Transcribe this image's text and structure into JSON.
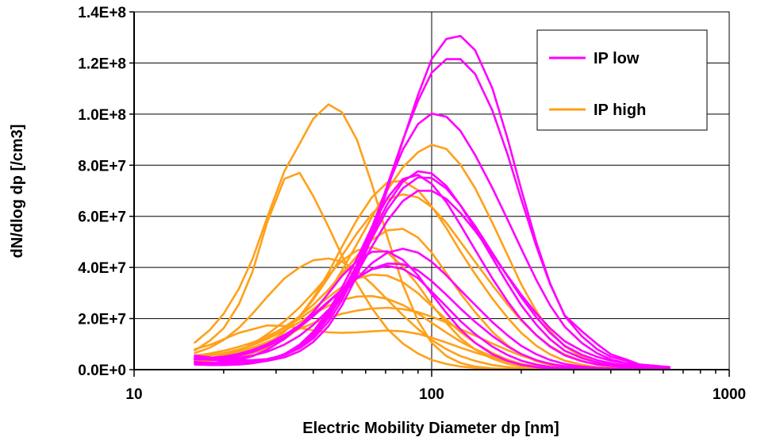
{
  "chart_data": {
    "type": "line",
    "title": "",
    "xlabel": "Electric Mobility Diameter dp [nm]",
    "ylabel": "dN/dlog dp [/cm3]",
    "xscale": "log",
    "xlim": [
      10,
      1000
    ],
    "ylim": [
      0,
      140000000
    ],
    "x_tick_labels": [
      "10",
      "100",
      "1000"
    ],
    "y_tick_labels": [
      "0.0E+0",
      "2.0E+7",
      "4.0E+7",
      "6.0E+7",
      "8.0E+7",
      "1.0E+8",
      "1.2E+8",
      "1.4E+8"
    ],
    "grid": true,
    "legend": {
      "position": "top-right",
      "entries": [
        {
          "label": "IP low",
          "color": "#ff00ff"
        },
        {
          "label": "IP high",
          "color": "#ffa01a"
        }
      ]
    },
    "x": [
      16,
      18,
      20,
      22.5,
      25,
      28,
      32,
      36,
      40,
      45,
      50,
      56,
      63,
      71,
      80,
      90,
      100,
      112,
      125,
      140,
      160,
      180,
      200,
      225,
      250,
      280,
      320,
      360,
      400,
      450,
      500,
      560,
      630
    ],
    "series": [
      {
        "group": "IP low",
        "values": [
          5000000,
          4100000,
          3450000,
          3050000,
          3030000,
          3400000,
          4810000,
          7200000,
          10800000,
          17000000,
          25200000,
          36600000,
          52300000,
          70500000,
          89600000,
          107500000,
          121500000,
          129400000,
          130600000,
          125000000,
          110100000,
          90400000,
          70500000,
          49600000,
          33800000,
          21000000,
          13000000,
          8000000,
          5000000,
          3500000,
          2000000,
          1500000,
          1000000
        ]
      },
      {
        "group": "IP low",
        "values": [
          5500000,
          4800000,
          4100000,
          3700000,
          3700000,
          4140000,
          5720000,
          8340000,
          12200000,
          18800000,
          27300000,
          38900000,
          54500000,
          72200000,
          89900000,
          105200000,
          116200000,
          121500000,
          121500000,
          115700000,
          101400000,
          84200000,
          66700000,
          48100000,
          33500000,
          21200000,
          15000000,
          10000000,
          6000000,
          4000000,
          2000000,
          1500000,
          1000000
        ]
      },
      {
        "group": "IP low",
        "values": [
          4500000,
          3900000,
          3350000,
          3150000,
          3300000,
          3980000,
          5860000,
          8840000,
          13100000,
          20300000,
          29200000,
          40900000,
          55800000,
          71700000,
          86100000,
          96100000,
          100200000,
          99000000,
          93400000,
          84000000,
          71100000,
          58700000,
          47300000,
          35000000,
          25200000,
          16800000,
          10400000,
          6400000,
          4000000,
          2500000,
          1800000,
          1300000,
          1000000
        ]
      },
      {
        "group": "IP low",
        "values": [
          3000000,
          2700000,
          2500000,
          2400000,
          2800000,
          3680000,
          6030000,
          9760000,
          14900000,
          23000000,
          32200000,
          43300000,
          55900000,
          67200000,
          74600000,
          76200000,
          72700000,
          65600000,
          56600000,
          46900000,
          35700000,
          26700000,
          19600000,
          13400000,
          9000000,
          5600000,
          3300000,
          2000000,
          1500000,
          1000000,
          800000,
          600000,
          500000
        ]
      },
      {
        "group": "IP low",
        "values": [
          2800000,
          2500000,
          2300000,
          2300000,
          2700000,
          3700000,
          6040000,
          9520000,
          14100000,
          21000000,
          28600000,
          37700000,
          48200000,
          58300000,
          66000000,
          70000000,
          70000000,
          66800000,
          61300000,
          54300000,
          45100000,
          36700000,
          29300000,
          21900000,
          16200000,
          11100000,
          7400000,
          5000000,
          3500000,
          2500000,
          1800000,
          1300000,
          1000000
        ]
      },
      {
        "group": "IP low",
        "values": [
          2500000,
          2200000,
          2000000,
          2100000,
          2500000,
          3490000,
          5870000,
          9480000,
          14400000,
          21900000,
          30400000,
          40800000,
          53000000,
          64800000,
          73600000,
          77600000,
          76800000,
          71900000,
          64300000,
          55100000,
          43700000,
          33700000,
          25200000,
          17500000,
          11900000,
          7400000,
          4500000,
          2800000,
          1800000,
          1200000,
          800000,
          600000,
          500000
        ]
      },
      {
        "group": "IP low",
        "values": [
          2000000,
          1800000,
          1800000,
          2000000,
          2500000,
          3520000,
          5930000,
          9540000,
          14400000,
          21800000,
          30000000,
          39900000,
          51500000,
          62700000,
          71000000,
          75200000,
          75000000,
          70900000,
          64300000,
          56200000,
          45700000,
          36400000,
          28300000,
          20400000,
          14400000,
          9300000,
          5800000,
          3700000,
          2500000,
          1700000,
          1200000,
          900000,
          700000
        ]
      },
      {
        "group": "IP low",
        "values": [
          4500000,
          4600000,
          5100000,
          6180000,
          7690000,
          10000000,
          13500000,
          17400000,
          21500000,
          26700000,
          31400000,
          35800000,
          39500000,
          41500000,
          41300000,
          38800000,
          34600000,
          29300000,
          23900000,
          18700000,
          13200000,
          9100000,
          6100000,
          3700000,
          2300000,
          1300000,
          700000,
          400000,
          300000,
          200000,
          100000,
          100000,
          100000
        ]
      },
      {
        "group": "IP low",
        "values": [
          4000000,
          4000000,
          4500000,
          5470000,
          6900000,
          9130000,
          12600000,
          16600000,
          20900000,
          26400000,
          31400000,
          35800000,
          39300000,
          40600000,
          39400000,
          35800000,
          30500000,
          24700000,
          19000000,
          13900000,
          9000000,
          5700000,
          3500000,
          2000000,
          1100000,
          600000,
          300000,
          200000,
          100000,
          100000,
          100000,
          100000,
          100000
        ]
      },
      {
        "group": "IP low",
        "values": [
          2500000,
          2500000,
          2900000,
          3810000,
          5290000,
          7790000,
          12000000,
          17000000,
          22600000,
          29900000,
          36700000,
          42400000,
          46100000,
          46300000,
          43000000,
          36900000,
          29600000,
          22200000,
          15700000,
          10500000,
          6000000,
          3400000,
          1900000,
          1000000,
          500000,
          300000,
          200000,
          100000,
          100000,
          100000,
          100000,
          100000,
          100000
        ]
      },
      {
        "group": "IP low",
        "values": [
          4000000,
          3900000,
          4100000,
          4610000,
          5500000,
          7000000,
          9800000,
          13300000,
          17500000,
          23400000,
          29400000,
          35700000,
          41700000,
          45800000,
          47300000,
          45800000,
          42200000,
          36900000,
          31100000,
          25300000,
          18600000,
          13400000,
          9300000,
          6000000,
          3800000,
          2200000,
          1200000,
          700000,
          500000,
          300000,
          200000,
          100000,
          100000
        ]
      },
      {
        "group": "IP high",
        "values": [
          10600000,
          15600000,
          21900000,
          31700000,
          43300000,
          59500000,
          77700000,
          88400000,
          98200000,
          103800000,
          100700000,
          90100000,
          72500000,
          51900000,
          33200000,
          19100000,
          10500000,
          5300000,
          2600000,
          1200000,
          500000,
          200000,
          100000,
          100000,
          100000,
          100000,
          100000,
          100000,
          100000,
          100000,
          100000,
          100000,
          100000
        ]
      },
      {
        "group": "IP high",
        "values": [
          7500000,
          11400000,
          16200000,
          25600000,
          38300000,
          57600000,
          74700000,
          77000000,
          67900000,
          55900000,
          44500000,
          33800000,
          24000000,
          15900000,
          10200000,
          6300000,
          3800000,
          2200000,
          1200000,
          700000,
          300000,
          200000,
          100000,
          100000,
          100000,
          100000,
          100000,
          100000,
          100000,
          100000,
          100000,
          100000,
          100000
        ]
      },
      {
        "group": "IP high",
        "values": [
          6500000,
          8600000,
          11600000,
          16400000,
          21900000,
          28500000,
          35700000,
          40000000,
          42800000,
          43500000,
          42200000,
          38800000,
          33500000,
          27400000,
          21300000,
          15900000,
          11600000,
          8000000,
          5300000,
          3400000,
          1800000,
          1000000,
          500000,
          300000,
          100000,
          100000,
          100000,
          100000,
          100000,
          100000,
          100000,
          100000,
          100000
        ]
      },
      {
        "group": "IP high",
        "values": [
          8000000,
          9700000,
          11900000,
          14400000,
          15800000,
          17300000,
          17100000,
          16300000,
          15400000,
          14600000,
          14400000,
          14600000,
          15000000,
          15300000,
          15000000,
          14000000,
          12500000,
          10600000,
          8600000,
          6700000,
          4700000,
          3300000,
          2200000,
          1400000,
          900000,
          500000,
          300000,
          200000,
          100000,
          100000,
          100000,
          100000,
          100000
        ]
      },
      {
        "group": "IP high",
        "values": [
          3000000,
          3900000,
          5300000,
          7500000,
          10000000,
          13800000,
          18900000,
          24400000,
          30100000,
          36900000,
          42700000,
          46600000,
          47900000,
          45800000,
          40400000,
          33100000,
          25500000,
          18300000,
          12300000,
          7900000,
          4300000,
          2300000,
          1200000,
          600000,
          300000,
          100000,
          100000,
          100000,
          100000,
          100000,
          100000,
          100000,
          100000
        ]
      },
      {
        "group": "IP high",
        "values": [
          4000000,
          4500000,
          5800000,
          7600000,
          9700000,
          12600000,
          16600000,
          20900000,
          25400000,
          31300000,
          37600000,
          44400000,
          50800000,
          54500000,
          55100000,
          51700000,
          45800000,
          37800000,
          29800000,
          22500000,
          14800000,
          9500000,
          5900000,
          3300000,
          1900000,
          1000000,
          500000,
          200000,
          100000,
          100000,
          100000,
          100000,
          100000
        ]
      },
      {
        "group": "IP high",
        "values": [
          3000000,
          3400000,
          4100000,
          5400000,
          7200000,
          10100000,
          14900000,
          20800000,
          27400000,
          36100000,
          44600000,
          53300000,
          61000000,
          66600000,
          68600000,
          67400000,
          63600000,
          57500000,
          50000000,
          42200000,
          33100000,
          25500000,
          19200000,
          13500000,
          9300000,
          5900000,
          3400000,
          2000000,
          1200000,
          700000,
          400000,
          200000,
          100000
        ]
      },
      {
        "group": "IP high",
        "values": [
          3500000,
          3800000,
          4500000,
          5600000,
          7300000,
          10000000,
          14700000,
          20800000,
          28000000,
          38000000,
          48200000,
          58500000,
          67500000,
          73300000,
          73900000,
          70200000,
          63900000,
          55400000,
          46200000,
          37400000,
          27800000,
          20300000,
          14400000,
          9300000,
          6000000,
          3500000,
          1900000,
          1000000,
          600000,
          300000,
          200000,
          100000,
          100000
        ]
      },
      {
        "group": "IP high",
        "values": [
          3500000,
          3800000,
          4300000,
          5100000,
          6500000,
          8500000,
          11900000,
          16400000,
          22000000,
          30000000,
          38900000,
          49000000,
          59800000,
          70300000,
          79200000,
          85100000,
          88000000,
          86400000,
          80200000,
          71000000,
          57500000,
          44800000,
          33400000,
          22800000,
          15100000,
          9100000,
          5000000,
          2700000,
          1500000,
          800000,
          400000,
          200000,
          100000
        ]
      },
      {
        "group": "IP high",
        "values": [
          4000000,
          4500000,
          5500000,
          6900000,
          8600000,
          10800000,
          13600000,
          16000000,
          18200000,
          20300000,
          21900000,
          23100000,
          23900000,
          24200000,
          23700000,
          22500000,
          20700000,
          18500000,
          15900000,
          13300000,
          10200000,
          7600000,
          5500000,
          3600000,
          2300000,
          1300000,
          700000,
          400000,
          200000,
          100000,
          100000,
          100000,
          100000
        ]
      },
      {
        "group": "IP high",
        "values": [
          5000000,
          5600000,
          6500000,
          7900000,
          9600000,
          12000000,
          15300000,
          18600000,
          21800000,
          25000000,
          27300000,
          28600000,
          28800000,
          27700000,
          25300000,
          22000000,
          18300000,
          14500000,
          11000000,
          8000000,
          5100000,
          3200000,
          1900000,
          1000000,
          600000,
          300000,
          100000,
          100000,
          100000,
          100000,
          100000,
          100000,
          100000
        ]
      },
      {
        "group": "IP high",
        "values": [
          5500000,
          6300000,
          7400000,
          8900000,
          10600000,
          13000000,
          16300000,
          19900000,
          23700000,
          28400000,
          32400000,
          35600000,
          37200000,
          36800000,
          34200000,
          29900000,
          24900000,
          19600000,
          14700000,
          10500000,
          6500000,
          3900000,
          2200000,
          1100000,
          600000,
          300000,
          100000,
          100000,
          100000,
          100000,
          100000,
          100000,
          100000
        ]
      }
    ]
  }
}
